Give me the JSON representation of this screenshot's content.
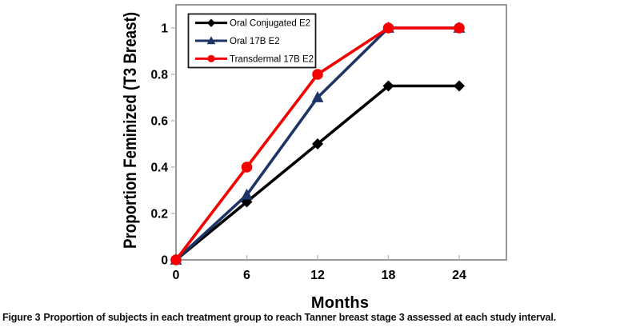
{
  "figure": {
    "caption_label": "Figure 3",
    "caption_text": "Proportion of subjects in each treatment group to reach Tanner breast stage 3 assessed at each study interval."
  },
  "chart_data": {
    "type": "line",
    "title": "",
    "xlabel": "Months",
    "ylabel": "Proportion Feminized (T3 Breast)",
    "x": [
      0,
      6,
      12,
      18,
      24
    ],
    "x_ticks": [
      0,
      6,
      12,
      18,
      24
    ],
    "y_ticks": [
      0,
      0.2,
      0.4,
      0.6,
      0.8,
      1
    ],
    "xlim": [
      0,
      28
    ],
    "ylim": [
      0,
      1.1
    ],
    "grid": false,
    "legend_position": "top-left-inside",
    "series": [
      {
        "name": "Oral Conjugated E2",
        "color": "#000000",
        "marker": "diamond",
        "values": [
          0,
          0.25,
          0.5,
          0.75,
          0.75
        ]
      },
      {
        "name": "Oral 17B E2",
        "color": "#1C3564",
        "marker": "triangle",
        "values": [
          0,
          0.28,
          0.7,
          1,
          1
        ]
      },
      {
        "name": "Transdermal 17B E2",
        "color": "#F40000",
        "marker": "circle",
        "values": [
          0,
          0.4,
          0.8,
          1,
          1
        ]
      }
    ],
    "frame_color": "#7f7f7f",
    "tick_color": "#b8b8b8",
    "text_color": "#000000",
    "legend_border_color": "#1a1a1a",
    "legend_bg_color": "#ffffff"
  }
}
